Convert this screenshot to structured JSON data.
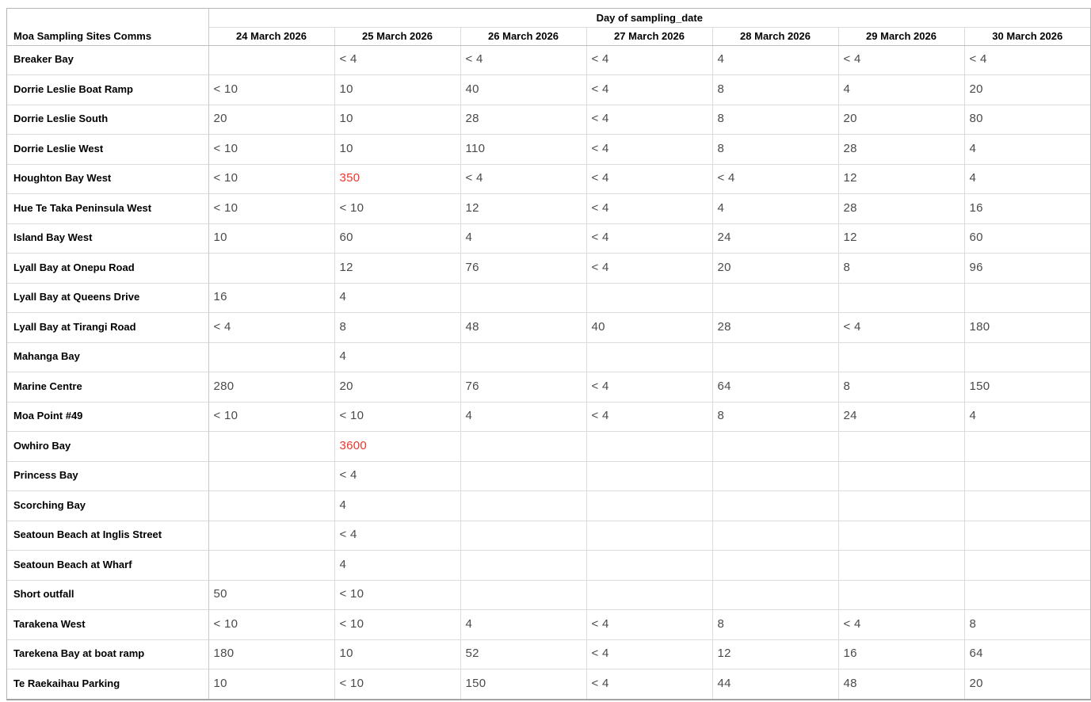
{
  "chart_data": {
    "type": "table",
    "title": "Day of sampling_date",
    "row_header": "Moa Sampling Sites Comms",
    "columns": [
      "24 March 2026",
      "25 March 2026",
      "26 March 2026",
      "27 March 2026",
      "28 March 2026",
      "29 March 2026",
      "30 March 2026"
    ],
    "rows": [
      {
        "site": "Breaker Bay",
        "values": [
          "",
          "< 4",
          "< 4",
          "< 4",
          "4",
          "< 4",
          "< 4"
        ]
      },
      {
        "site": "Dorrie Leslie Boat Ramp",
        "values": [
          "< 10",
          "10",
          "40",
          "< 4",
          "8",
          "4",
          "20"
        ]
      },
      {
        "site": "Dorrie Leslie South",
        "values": [
          "20",
          "10",
          "28",
          "< 4",
          "8",
          "20",
          "80"
        ]
      },
      {
        "site": "Dorrie Leslie West",
        "values": [
          "< 10",
          "10",
          "110",
          "< 4",
          "8",
          "28",
          "4"
        ]
      },
      {
        "site": "Houghton Bay West",
        "values": [
          "< 10",
          "350",
          "< 4",
          "< 4",
          "< 4",
          "12",
          "4"
        ],
        "red_cols": [
          1
        ]
      },
      {
        "site": "Hue Te Taka Peninsula West",
        "values": [
          "< 10",
          "< 10",
          "12",
          "< 4",
          "4",
          "28",
          "16"
        ]
      },
      {
        "site": "Island Bay West",
        "values": [
          "10",
          "60",
          "4",
          "< 4",
          "24",
          "12",
          "60"
        ]
      },
      {
        "site": "Lyall Bay at Onepu Road",
        "values": [
          "",
          "12",
          "76",
          "< 4",
          "20",
          "8",
          "96"
        ]
      },
      {
        "site": "Lyall Bay at Queens Drive",
        "values": [
          "16",
          "4",
          "",
          "",
          "",
          "",
          ""
        ]
      },
      {
        "site": "Lyall Bay at Tirangi Road",
        "values": [
          "< 4",
          "8",
          "48",
          "40",
          "28",
          "< 4",
          "180"
        ]
      },
      {
        "site": "Mahanga Bay",
        "values": [
          "",
          "4",
          "",
          "",
          "",
          "",
          ""
        ]
      },
      {
        "site": "Marine Centre",
        "values": [
          "280",
          "20",
          "76",
          "< 4",
          "64",
          "8",
          "150"
        ]
      },
      {
        "site": "Moa Point #49",
        "values": [
          "< 10",
          "< 10",
          "4",
          "< 4",
          "8",
          "24",
          "4"
        ]
      },
      {
        "site": "Owhiro Bay",
        "values": [
          "",
          "3600",
          "",
          "",
          "",
          "",
          ""
        ],
        "red_cols": [
          1
        ]
      },
      {
        "site": "Princess Bay",
        "values": [
          "",
          "< 4",
          "",
          "",
          "",
          "",
          ""
        ]
      },
      {
        "site": "Scorching Bay",
        "values": [
          "",
          "4",
          "",
          "",
          "",
          "",
          ""
        ]
      },
      {
        "site": "Seatoun Beach at Inglis Street",
        "values": [
          "",
          "< 4",
          "",
          "",
          "",
          "",
          ""
        ]
      },
      {
        "site": "Seatoun Beach at Wharf",
        "values": [
          "",
          "4",
          "",
          "",
          "",
          "",
          ""
        ]
      },
      {
        "site": "Short outfall",
        "values": [
          "50",
          "< 10",
          "",
          "",
          "",
          "",
          ""
        ]
      },
      {
        "site": "Tarakena West",
        "values": [
          "< 10",
          "< 10",
          "4",
          "< 4",
          "8",
          "< 4",
          "8"
        ]
      },
      {
        "site": "Tarekena Bay at boat ramp",
        "values": [
          "180",
          "10",
          "52",
          "< 4",
          "12",
          "16",
          "64"
        ]
      },
      {
        "site": "Te Raekaihau Parking",
        "values": [
          "10",
          "< 10",
          "150",
          "< 4",
          "44",
          "48",
          "20"
        ]
      }
    ],
    "highlighted_cells": [
      {
        "site": "Houghton Bay West",
        "column": "25 March 2026",
        "value": "350"
      },
      {
        "site": "Owhiro Bay",
        "column": "25 March 2026",
        "value": "3600"
      }
    ],
    "colors": {
      "alert_text": "#f0352b",
      "value_text": "#4a4a4a",
      "header_text": "#000000",
      "gridline": "#dcdcdc",
      "outer_border": "#b5b5b5"
    },
    "layout_hints": {
      "grid": "on",
      "red_means": "elevated result"
    }
  }
}
